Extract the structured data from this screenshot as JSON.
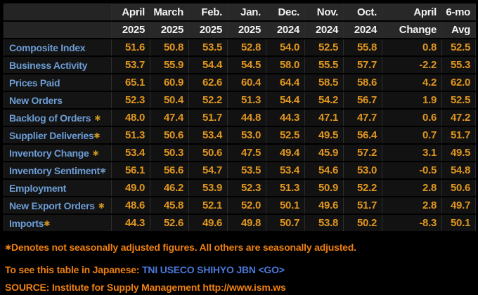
{
  "colors": {
    "value_amber": "#e0961f",
    "label_blue": "#6c9cd4",
    "asterisk_amber": "#c9941f",
    "asterisk_blue": "#6f8fba",
    "footnote_orange": "#ee8012",
    "command_blue": "#4a79d9",
    "header_bg": "#282828",
    "cell_bg": "#121212"
  },
  "table": {
    "columns": [
      {
        "month": "April",
        "year": "2025"
      },
      {
        "month": "March",
        "year": "2025"
      },
      {
        "month": "Feb.",
        "year": "2025"
      },
      {
        "month": "Jan.",
        "year": "2025"
      },
      {
        "month": "Dec.",
        "year": "2024"
      },
      {
        "month": "Nov.",
        "year": "2024"
      },
      {
        "month": "Oct.",
        "year": "2024"
      },
      {
        "month": "April",
        "year": "Change"
      },
      {
        "month": "6-mo",
        "year": "Avg"
      }
    ],
    "rows": [
      {
        "label": "Composite Index",
        "mark": "",
        "mark_color": "",
        "mark_space": false,
        "values": [
          "51.6",
          "50.8",
          "53.5",
          "52.8",
          "54.0",
          "52.5",
          "55.8",
          "0.8",
          "52.5"
        ]
      },
      {
        "label": "Business Activity",
        "mark": "",
        "mark_color": "",
        "mark_space": false,
        "values": [
          "53.7",
          "55.9",
          "54.4",
          "54.5",
          "58.0",
          "55.5",
          "57.7",
          "-2.2",
          "55.3"
        ]
      },
      {
        "label": "Prices Paid",
        "mark": "",
        "mark_color": "",
        "mark_space": false,
        "values": [
          "65.1",
          "60.9",
          "62.6",
          "60.4",
          "64.4",
          "58.5",
          "58.6",
          "4.2",
          "62.0"
        ]
      },
      {
        "label": "New Orders",
        "mark": "",
        "mark_color": "",
        "mark_space": false,
        "values": [
          "52.3",
          "50.4",
          "52.2",
          "51.3",
          "54.4",
          "54.2",
          "56.7",
          "1.9",
          "52.5"
        ]
      },
      {
        "label": "Backlog of Orders",
        "mark": "✱",
        "mark_color": "amber",
        "mark_space": true,
        "values": [
          "48.0",
          "47.4",
          "51.7",
          "44.8",
          "44.3",
          "47.1",
          "47.7",
          "0.6",
          "47.2"
        ]
      },
      {
        "label": "Supplier Deliveries",
        "mark": "✱",
        "mark_color": "amber",
        "mark_space": false,
        "values": [
          "51.3",
          "50.6",
          "53.4",
          "53.0",
          "52.5",
          "49.5",
          "56.4",
          "0.7",
          "51.7"
        ]
      },
      {
        "label": "Inventory Change",
        "mark": "✱",
        "mark_color": "amber",
        "mark_space": true,
        "values": [
          "53.4",
          "50.3",
          "50.6",
          "47.5",
          "49.4",
          "45.9",
          "57.2",
          "3.1",
          "49.5"
        ]
      },
      {
        "label": "Inventory Sentiment",
        "mark": "✱",
        "mark_color": "blue",
        "mark_space": false,
        "values": [
          "56.1",
          "56.6",
          "54.7",
          "53.5",
          "53.4",
          "54.6",
          "53.0",
          "-0.5",
          "54.8"
        ]
      },
      {
        "label": "Employment",
        "mark": "",
        "mark_color": "",
        "mark_space": false,
        "values": [
          "49.0",
          "46.2",
          "53.9",
          "52.3",
          "51.3",
          "50.9",
          "52.2",
          "2.8",
          "50.6"
        ]
      },
      {
        "label": "New Export Orders",
        "mark": "✱",
        "mark_color": "amber",
        "mark_space": true,
        "values": [
          "48.6",
          "45.8",
          "52.1",
          "52.0",
          "50.1",
          "49.6",
          "51.7",
          "2.8",
          "49.7"
        ]
      },
      {
        "label": "Imports",
        "mark": "✱",
        "mark_color": "amber",
        "mark_space": false,
        "values": [
          "44.3",
          "52.6",
          "49.6",
          "49.8",
          "50.7",
          "53.8",
          "50.2",
          "-8.3",
          "50.1"
        ]
      }
    ]
  },
  "footnotes": {
    "note_mark": "✱",
    "note_text": "Denotes not seasonally adjusted figures. All others are seasonally adjusted.",
    "japanese_prefix": "To see this table in Japanese: ",
    "japanese_command": "TNI USECO SHIHYO JBN <GO>",
    "source": "SOURCE: Institute for Supply Management http://www.ism.ws"
  }
}
